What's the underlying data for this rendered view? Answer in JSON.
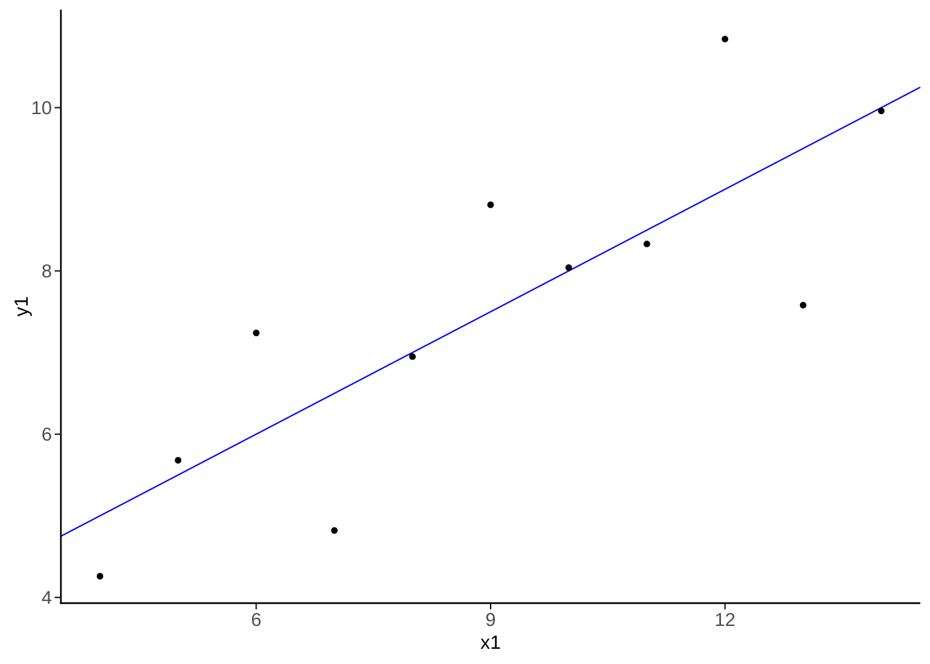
{
  "chart_data": {
    "type": "scatter",
    "title": "",
    "xlabel": "x1",
    "ylabel": "y1",
    "x_tick_labels": [
      "6",
      "9",
      "12"
    ],
    "x_tick_values": [
      6,
      9,
      12
    ],
    "y_tick_labels": [
      "4",
      "6",
      "8",
      "10"
    ],
    "y_tick_values": [
      4,
      6,
      8,
      10
    ],
    "xlim": [
      3.5,
      14.5
    ],
    "ylim": [
      3.93,
      11.2
    ],
    "grid": false,
    "legend": false,
    "points": [
      {
        "x": 4,
        "y": 4.26
      },
      {
        "x": 5,
        "y": 5.68
      },
      {
        "x": 6,
        "y": 7.24
      },
      {
        "x": 7,
        "y": 4.82
      },
      {
        "x": 8,
        "y": 6.95
      },
      {
        "x": 9,
        "y": 8.81
      },
      {
        "x": 10,
        "y": 8.04
      },
      {
        "x": 11,
        "y": 8.33
      },
      {
        "x": 12,
        "y": 10.84
      },
      {
        "x": 13,
        "y": 7.58
      },
      {
        "x": 14,
        "y": 9.96
      }
    ],
    "regression_line": {
      "slope": 0.5,
      "intercept": 3.0,
      "color": "#0000FF"
    },
    "colors": {
      "point": "#000000",
      "axis_line": "#000000",
      "tick_mark": "#1A1A1A",
      "tick_label": "#4D4D4D",
      "axis_title": "#000000",
      "background": "#FFFFFF"
    }
  }
}
